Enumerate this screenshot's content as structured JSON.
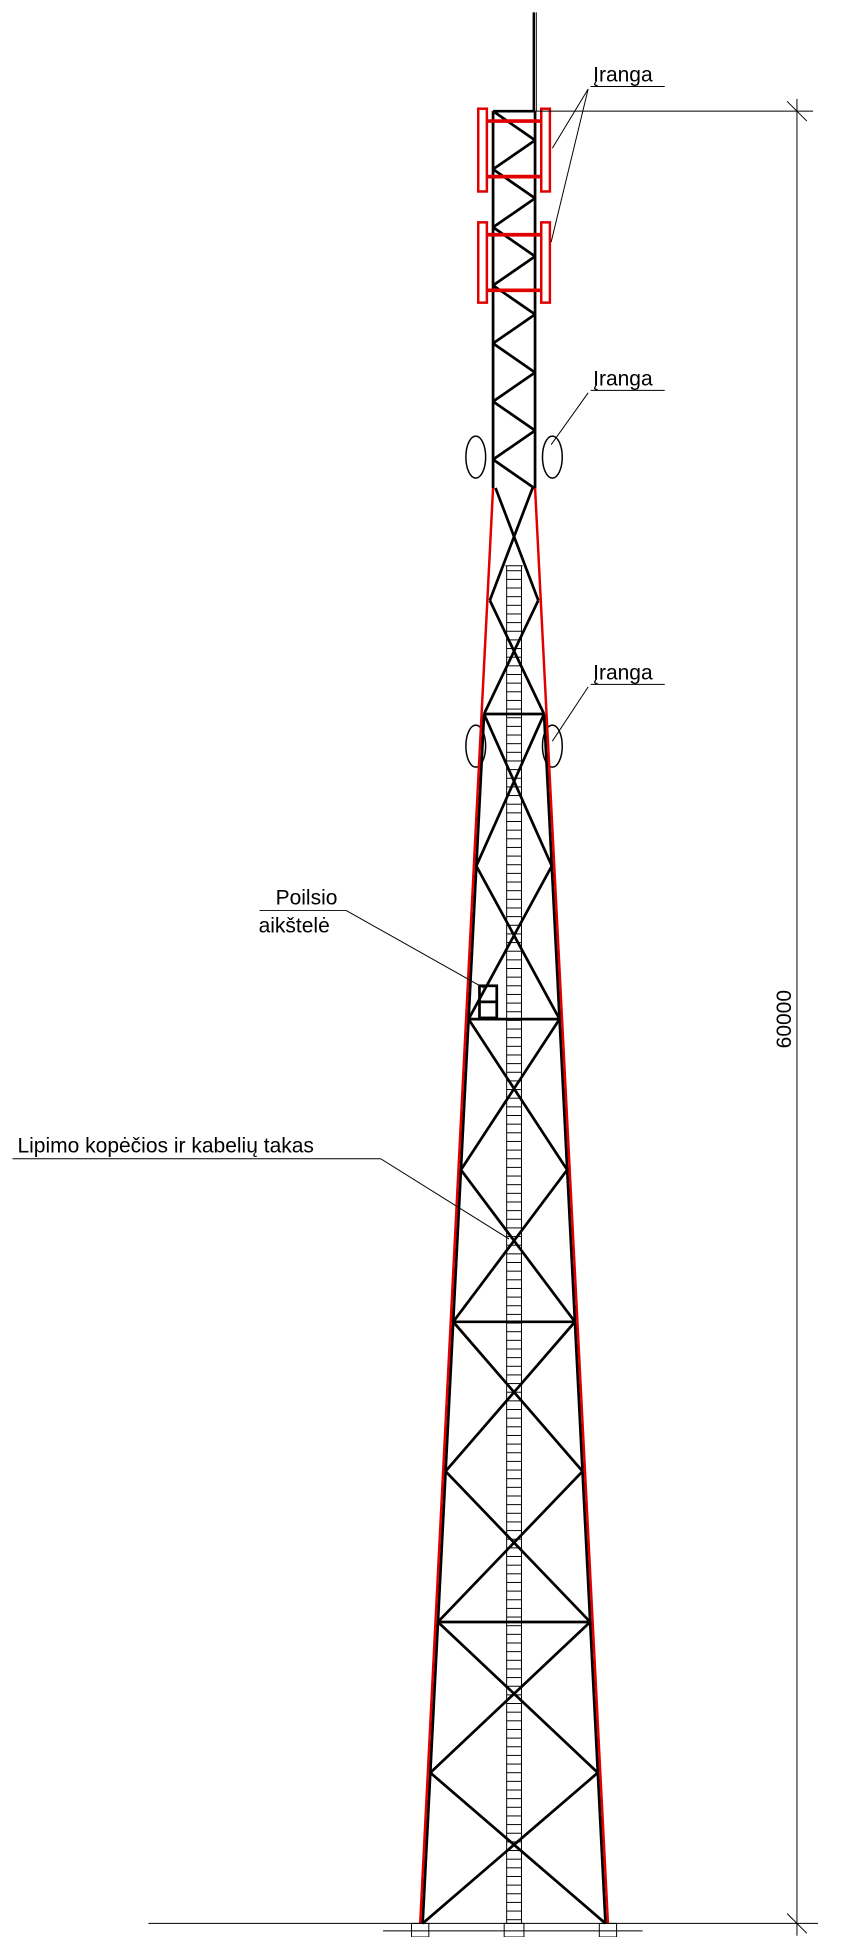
{
  "labels": {
    "equipment": [
      "Įranga",
      "Įranga",
      "Įranga"
    ],
    "rest_platform": [
      "Poilsio",
      "aikštelė"
    ],
    "ladder": "Lipimo kopėčios ir kabelių takas",
    "dimension": "60000"
  }
}
